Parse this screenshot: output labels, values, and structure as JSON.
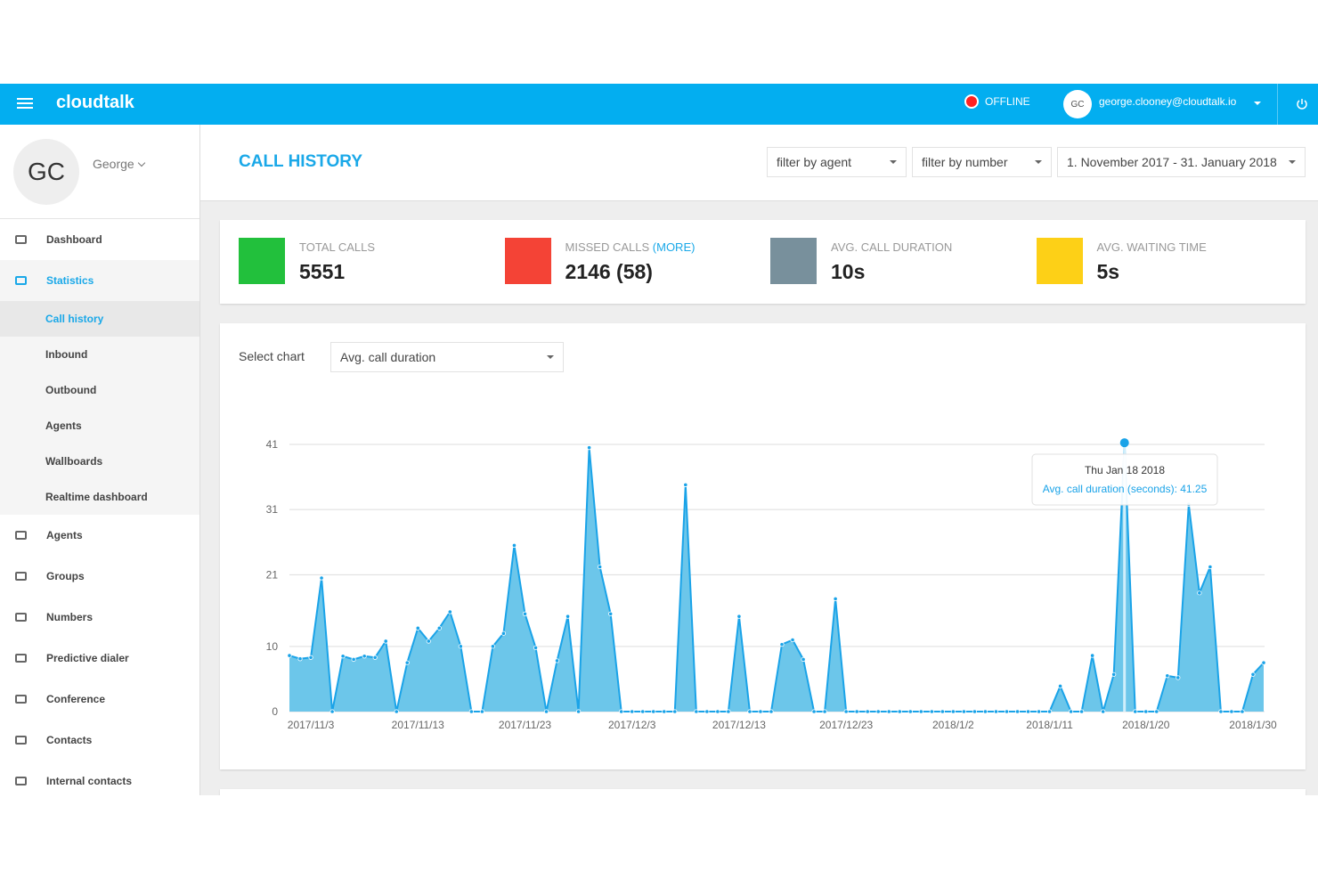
{
  "topbar": {
    "brand": "cloudtalk",
    "status": "OFFLINE",
    "avatar": "GC",
    "email": "george.clooney@cloudtalk.io"
  },
  "profile": {
    "avatar": "GC",
    "name": "George"
  },
  "nav": [
    {
      "label": "Dashboard"
    },
    {
      "label": "Statistics",
      "active": true,
      "children": [
        {
          "label": "Call history",
          "active": true
        },
        {
          "label": "Inbound"
        },
        {
          "label": "Outbound"
        },
        {
          "label": "Agents"
        },
        {
          "label": "Wallboards"
        },
        {
          "label": "Realtime dashboard"
        }
      ]
    },
    {
      "label": "Agents"
    },
    {
      "label": "Groups"
    },
    {
      "label": "Numbers"
    },
    {
      "label": "Predictive dialer"
    },
    {
      "label": "Conference"
    },
    {
      "label": "Contacts"
    },
    {
      "label": "Internal contacts"
    }
  ],
  "header": {
    "title": "CALL HISTORY",
    "filters": [
      "filter by agent",
      "filter by number",
      "1. November 2017 - 31. January 2018"
    ]
  },
  "stats": [
    {
      "label": "TOTAL CALLS",
      "value": "5551",
      "color": "#22c03c"
    },
    {
      "label": "MISSED CALLS",
      "link": "(MORE)",
      "value": "2146 (58)",
      "color": "#f44336"
    },
    {
      "label": "AVG. CALL DURATION",
      "value": "10s",
      "color": "#78909c"
    },
    {
      "label": "AVG. WAITING TIME",
      "value": "5s",
      "color": "#fdd017"
    }
  ],
  "chart_select": {
    "label": "Select chart",
    "value": "Avg. call duration"
  },
  "tooltip": {
    "title": "Thu Jan 18 2018",
    "text": "Avg. call duration (seconds): 41.25",
    "index": 78
  },
  "chart_data": {
    "type": "area",
    "categories": [
      null,
      null,
      "2017/11/3",
      null,
      null,
      null,
      null,
      null,
      null,
      null,
      null,
      null,
      "2017/11/13",
      null,
      null,
      null,
      null,
      null,
      null,
      null,
      null,
      null,
      "2017/11/23",
      null,
      null,
      null,
      null,
      null,
      null,
      null,
      null,
      null,
      "2017/12/3",
      null,
      null,
      null,
      null,
      null,
      null,
      null,
      null,
      null,
      "2017/12/13",
      null,
      null,
      null,
      null,
      null,
      null,
      null,
      null,
      null,
      "2017/12/23",
      null,
      null,
      null,
      null,
      null,
      null,
      null,
      null,
      null,
      "2018/1/2",
      null,
      null,
      null,
      null,
      null,
      null,
      null,
      null,
      "2018/1/11",
      null,
      null,
      null,
      null,
      null,
      null,
      null,
      null,
      "2018/1/20",
      null,
      null,
      null,
      null,
      null,
      null,
      null,
      null,
      null,
      "2018/1/30",
      null
    ],
    "values": [
      8.6,
      8.1,
      8.3,
      20.5,
      0,
      8.5,
      8.0,
      8.5,
      8.3,
      10.8,
      0,
      7.5,
      12.8,
      10.8,
      12.8,
      15.3,
      10.0,
      0,
      0,
      10.0,
      12.0,
      25.5,
      15.0,
      9.8,
      0,
      7.8,
      14.6,
      0,
      40.5,
      22.2,
      15.0,
      0,
      0,
      0,
      0,
      0,
      0,
      34.8,
      0,
      0,
      0,
      0,
      14.6,
      0,
      0,
      0,
      10.3,
      11.0,
      8.0,
      0,
      0,
      17.3,
      0,
      0,
      0,
      0,
      0,
      0,
      0,
      0,
      0,
      0,
      0,
      0,
      0,
      0,
      0,
      0,
      0,
      0,
      0,
      0,
      3.9,
      0,
      0,
      8.6,
      0,
      5.7,
      41.25,
      0,
      0,
      0,
      5.5,
      5.2,
      31.8,
      18.2,
      22.2,
      0,
      0,
      0,
      5.7,
      7.5
    ],
    "color": "#1aa3e8",
    "fill": "#6cc6ea",
    "ylim": [
      0,
      41
    ],
    "yticks": [
      0,
      10,
      21,
      31,
      41
    ],
    "grid": true
  }
}
